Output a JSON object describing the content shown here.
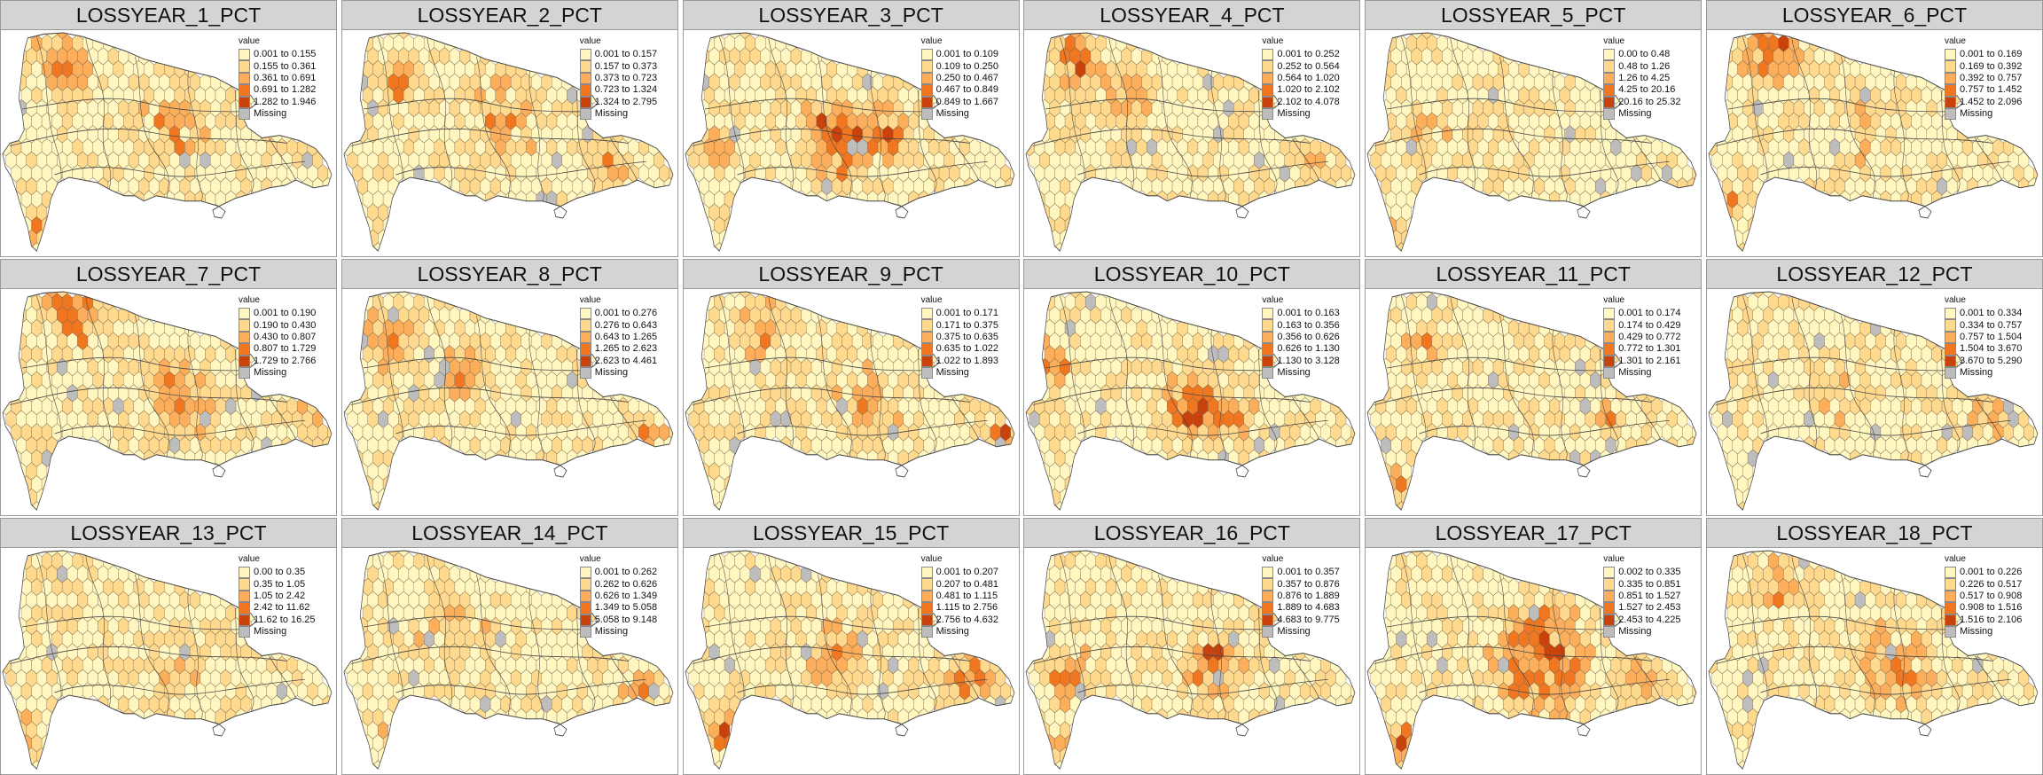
{
  "palette": [
    "#fff6c0",
    "#fed98e",
    "#fdae5b",
    "#f0761f",
    "#c9420c"
  ],
  "missing_color": "#bdbdbd",
  "border_color": "#474747",
  "legend_title": "value",
  "missing_label": "Missing",
  "panels": [
    {
      "title": "LOSSYEAR_1_PCT",
      "legend": [
        "0.001 to 0.155",
        "0.155 to 0.361",
        "0.361 to 0.691",
        "0.691 to 1.282",
        "1.282 to 1.946"
      ]
    },
    {
      "title": "LOSSYEAR_2_PCT",
      "legend": [
        "0.001 to 0.157",
        "0.157 to 0.373",
        "0.373 to 0.723",
        "0.723 to 1.324",
        "1.324 to 2.795"
      ]
    },
    {
      "title": "LOSSYEAR_3_PCT",
      "legend": [
        "0.001 to 0.109",
        "0.109 to 0.250",
        "0.250 to 0.467",
        "0.467 to 0.849",
        "0.849 to 1.667"
      ]
    },
    {
      "title": "LOSSYEAR_4_PCT",
      "legend": [
        "0.001 to 0.252",
        "0.252 to 0.564",
        "0.564 to 1.020",
        "1.020 to 2.102",
        "2.102 to 4.078"
      ]
    },
    {
      "title": "LOSSYEAR_5_PCT",
      "legend": [
        "0.00 to 0.48",
        "0.48 to 1.26",
        "1.26 to 4.25",
        "4.25 to 20.16",
        "20.16 to 25.32"
      ]
    },
    {
      "title": "LOSSYEAR_6_PCT",
      "legend": [
        "0.001 to 0.169",
        "0.169 to 0.392",
        "0.392 to 0.757",
        "0.757 to 1.452",
        "1.452 to 2.096"
      ]
    },
    {
      "title": "LOSSYEAR_7_PCT",
      "legend": [
        "0.001 to 0.190",
        "0.190 to 0.430",
        "0.430 to 0.807",
        "0.807 to 1.729",
        "1.729 to 2.766"
      ]
    },
    {
      "title": "LOSSYEAR_8_PCT",
      "legend": [
        "0.001 to 0.276",
        "0.276 to 0.643",
        "0.643 to 1.265",
        "1.265 to 2.623",
        "2.623 to 4.461"
      ]
    },
    {
      "title": "LOSSYEAR_9_PCT",
      "legend": [
        "0.001 to 0.171",
        "0.171 to 0.375",
        "0.375 to 0.635",
        "0.635 to 1.022",
        "1.022 to 1.893"
      ]
    },
    {
      "title": "LOSSYEAR_10_PCT",
      "legend": [
        "0.001 to 0.163",
        "0.163 to 0.356",
        "0.356 to 0.626",
        "0.626 to 1.130",
        "1.130 to 3.128"
      ]
    },
    {
      "title": "LOSSYEAR_11_PCT",
      "legend": [
        "0.001 to 0.174",
        "0.174 to 0.429",
        "0.429 to 0.772",
        "0.772 to 1.301",
        "1.301 to 2.161"
      ]
    },
    {
      "title": "LOSSYEAR_12_PCT",
      "legend": [
        "0.001 to 0.334",
        "0.334 to 0.757",
        "0.757 to 1.504",
        "1.504 to 3.670",
        "3.670 to 5.290"
      ]
    },
    {
      "title": "LOSSYEAR_13_PCT",
      "legend": [
        "0.00 to 0.35",
        "0.35 to 1.05",
        "1.05 to 2.42",
        "2.42 to 11.62",
        "11.62 to 16.25"
      ]
    },
    {
      "title": "LOSSYEAR_14_PCT",
      "legend": [
        "0.001 to 0.262",
        "0.262 to 0.626",
        "0.626 to 1.349",
        "1.349 to 5.058",
        "5.058 to 9.148"
      ]
    },
    {
      "title": "LOSSYEAR_15_PCT",
      "legend": [
        "0.001 to 0.207",
        "0.207 to 0.481",
        "0.481 to 1.115",
        "1.115 to 2.756",
        "2.756 to 4.632"
      ]
    },
    {
      "title": "LOSSYEAR_16_PCT",
      "legend": [
        "0.001 to 0.357",
        "0.357 to 0.876",
        "0.876 to 1.889",
        "1.889 to 4.683",
        "4.683 to 9.775"
      ]
    },
    {
      "title": "LOSSYEAR_17_PCT",
      "legend": [
        "0.002 to 0.335",
        "0.335 to 0.851",
        "0.851 to 1.527",
        "1.527 to 2.453",
        "2.453 to 4.225"
      ]
    },
    {
      "title": "LOSSYEAR_18_PCT",
      "legend": [
        "0.001 to 0.226",
        "0.226 to 0.517",
        "0.517 to 0.908",
        "0.908 to 1.516",
        "1.516 to 2.106"
      ]
    }
  ]
}
